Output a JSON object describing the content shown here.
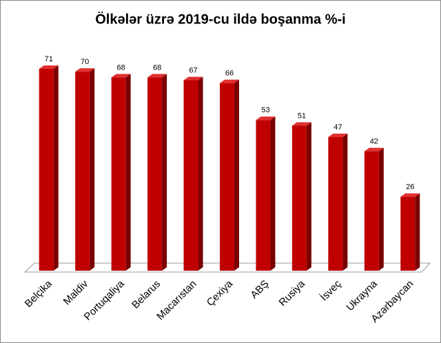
{
  "chart_data": {
    "type": "bar",
    "title": "Ölkələr üzrə 2019-cu ildə boşanma %-i",
    "categories": [
      "Belçika",
      "Maldiv",
      "Portuqaliya",
      "Belarus",
      "Macarıstan",
      "Çexiya",
      "ABŞ",
      "Rusiya",
      "İsveç",
      "Ukrayna",
      "Azərbaycan"
    ],
    "values": [
      71,
      70,
      68,
      68,
      67,
      66,
      53,
      51,
      47,
      42,
      26
    ],
    "color": "#c00000"
  }
}
